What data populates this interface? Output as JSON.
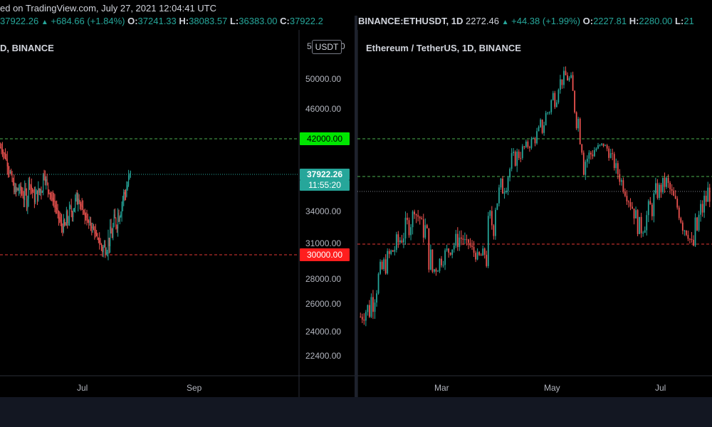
{
  "header": {
    "published_text": "ed on TradingView.com, July 27, 2021 12:04:41 UTC"
  },
  "btc_quote": {
    "price": "37922.26",
    "change": "+684.66 (+1.84%)",
    "o_label": "O:",
    "o_val": "37241.33",
    "h_label": "H:",
    "h_val": "38083.57",
    "l_label": "L:",
    "l_val": "36383.00",
    "c_label": "C:",
    "c_val": "37922.2"
  },
  "eth_quote": {
    "symbol": "BINANCE:ETHUSDT, 1D",
    "price": "2272.46",
    "change": "+44.38 (+1.99%)",
    "o_label": "O:",
    "o_val": "2227.81",
    "h_label": "H:",
    "h_val": "2280.00",
    "l_label": "L:",
    "l_val": "21"
  },
  "btc_panel": {
    "title": "D, BINANCE",
    "currency_badge": "USDT",
    "price_ticks": [
      "50000.00",
      "46000.00",
      "34000.00",
      "31000.00",
      "28000.00",
      "26000.00",
      "24000.00",
      "22400.00"
    ],
    "price_ticks_values": [
      50000,
      46000,
      34000,
      31000,
      28000,
      26000,
      24000,
      22400
    ],
    "badge_5": "5",
    "badge_0": "0",
    "time_ticks": [
      "Jul",
      "Sep"
    ],
    "tags": {
      "resistance": "42000.00",
      "current_price": "37922.26",
      "countdown": "11:55:20",
      "support": "30000.00"
    },
    "colors": {
      "resistance": "#00e600",
      "current": "#26a69a",
      "support": "#ff1e1e"
    }
  },
  "eth_panel": {
    "title": "Ethereum / TetherUS, 1D, BINANCE",
    "time_ticks": [
      "Mar",
      "May",
      "Jul"
    ]
  },
  "chart_data": [
    {
      "type": "candlestick",
      "title": "D, BINANCE",
      "y_axis_ticks": [
        50000,
        46000,
        34000,
        31000,
        28000,
        26000,
        24000,
        22400
      ],
      "x_ticks": [
        "Jul",
        "Sep"
      ],
      "horizontal_levels": [
        42000,
        30000
      ],
      "last_price": 37922.26,
      "approx_close_path": [
        41000,
        40000,
        38000,
        36000,
        36500,
        35000,
        37000,
        35500,
        36000,
        38000,
        36000,
        35000,
        33500,
        32000,
        33500,
        34500,
        35500,
        34000,
        33000,
        32500,
        31500,
        30500,
        31000,
        32000,
        33500,
        35000,
        36500,
        37922
      ]
    },
    {
      "type": "candlestick",
      "title": "Ethereum / TetherUS, 1D, BINANCE",
      "x_ticks": [
        "Mar",
        "May",
        "Jul"
      ],
      "approx_close_path": [
        1350,
        1400,
        1550,
        1700,
        1800,
        1900,
        2000,
        1950,
        1600,
        1700,
        1780,
        1850,
        1820,
        1700,
        1750,
        2100,
        2300,
        2500,
        2600,
        2750,
        3000,
        3500,
        4000,
        4200,
        3400,
        2500,
        2600,
        2700,
        2500,
        2300,
        2100,
        1900,
        2000,
        2200,
        2300,
        2100,
        1900,
        1800,
        2050,
        2272
      ]
    }
  ]
}
